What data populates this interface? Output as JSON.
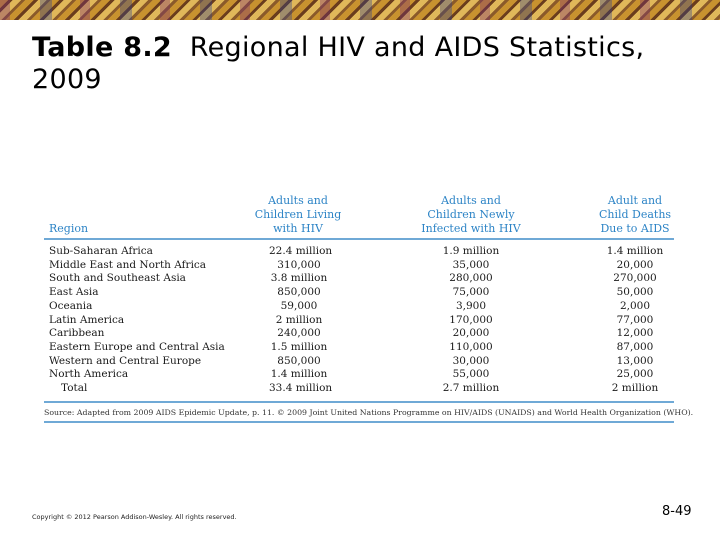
{
  "slide": {
    "title_number": "Table 8.2",
    "title_text": "Regional HIV and AIDS Statistics, 2009",
    "copyright": "Copyright © 2012 Pearson Addison-Wesley. All rights reserved.",
    "page_number": "8-49"
  },
  "table": {
    "headers": {
      "region": "Region",
      "living": [
        "Adults and",
        "Children Living",
        "with HIV"
      ],
      "infected": [
        "Adults and",
        "Children Newly",
        "Infected with HIV"
      ],
      "deaths": [
        "Adult and",
        "Child Deaths",
        "Due to AIDS"
      ]
    },
    "rows": [
      {
        "region": "Sub-Saharan Africa",
        "living": "22.4 million",
        "infected": "1.9 million",
        "deaths": "1.4 million"
      },
      {
        "region": "Middle East and North Africa",
        "living": "310,000",
        "infected": "35,000",
        "deaths": "20,000"
      },
      {
        "region": "South and Southeast Asia",
        "living": "3.8 million",
        "infected": "280,000",
        "deaths": "270,000"
      },
      {
        "region": "East Asia",
        "living": "850,000",
        "infected": "75,000",
        "deaths": "50,000"
      },
      {
        "region": "Oceania",
        "living": "59,000",
        "infected": "3,900",
        "deaths": "2,000"
      },
      {
        "region": "Latin America",
        "living": "2 million",
        "infected": "170,000",
        "deaths": "77,000"
      },
      {
        "region": "Caribbean",
        "living": "240,000",
        "infected": "20,000",
        "deaths": "12,000"
      },
      {
        "region": "Eastern Europe and Central Asia",
        "living": "1.5 million",
        "infected": "110,000",
        "deaths": "87,000"
      },
      {
        "region": "Western and Central Europe",
        "living": "850,000",
        "infected": "30,000",
        "deaths": "13,000"
      },
      {
        "region": "North America",
        "living": "1.4 million",
        "infected": "55,000",
        "deaths": "25,000"
      },
      {
        "region": "Total",
        "living": "33.4 million",
        "infected": "2.7 million",
        "deaths": "2 million"
      }
    ],
    "source": "Source: Adapted from 2009 AIDS Epidemic Update, p. 11. © 2009 Joint United Nations Programme on HIV/AIDS (UNAIDS) and World Health Organization (WHO)."
  }
}
